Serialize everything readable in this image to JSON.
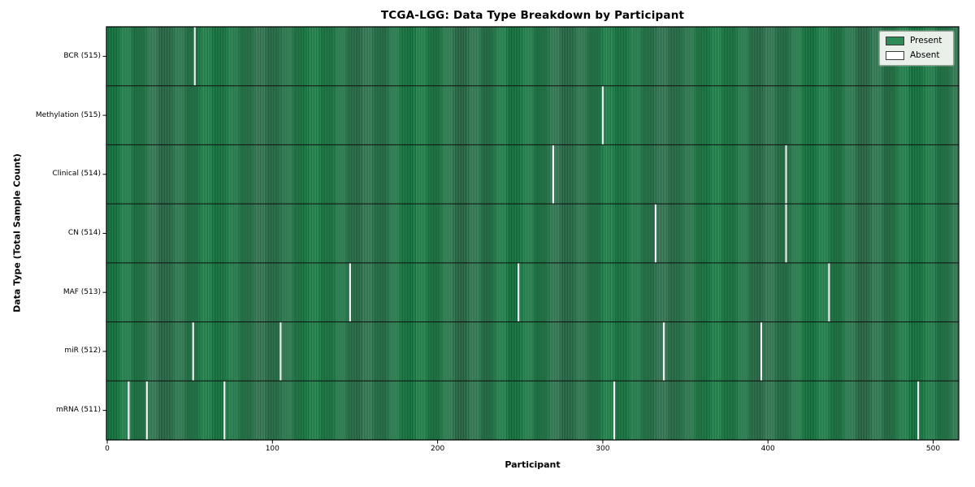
{
  "figure": {
    "title": "TCGA-LGG: Data Type Breakdown by Participant",
    "x_axis_title": "Participant",
    "y_axis_title": "Data Type (Total Sample Count)"
  },
  "chart_data": {
    "type": "heatmap",
    "title": "TCGA-LGG: Data Type Breakdown by Participant",
    "xlabel": "Participant",
    "ylabel": "Data Type (Total Sample Count)",
    "n_participants": 516,
    "xlim": [
      0,
      515
    ],
    "x_ticks": [
      0,
      100,
      200,
      300,
      400,
      500
    ],
    "grid": false,
    "legend_position": "upper right",
    "legend_items": [
      {
        "label": "Present",
        "color": "#2e8b57"
      },
      {
        "label": "Absent",
        "color": "#ffffff"
      }
    ],
    "present_color": "#2e8b57",
    "bar_edge_color": "#14432c",
    "absent_color": "#ffffff",
    "rows": [
      {
        "label": "BCR (515)",
        "data_type": "BCR",
        "present_count": 515,
        "absent_participants": [
          53
        ]
      },
      {
        "label": "Methylation (515)",
        "data_type": "Methylation",
        "present_count": 515,
        "absent_participants": [
          300
        ]
      },
      {
        "label": "Clinical (514)",
        "data_type": "Clinical",
        "present_count": 514,
        "absent_participants": [
          270,
          411
        ]
      },
      {
        "label": "CN (514)",
        "data_type": "CN",
        "present_count": 514,
        "absent_participants": [
          332,
          411
        ]
      },
      {
        "label": "MAF (513)",
        "data_type": "MAF",
        "present_count": 513,
        "absent_participants": [
          147,
          249,
          437
        ]
      },
      {
        "label": "miR (512)",
        "data_type": "miR",
        "present_count": 512,
        "absent_participants": [
          52,
          105,
          337,
          396
        ]
      },
      {
        "label": "mRNA (511)",
        "data_type": "mRNA",
        "present_count": 511,
        "absent_participants": [
          13,
          24,
          71,
          307,
          491
        ]
      }
    ]
  }
}
